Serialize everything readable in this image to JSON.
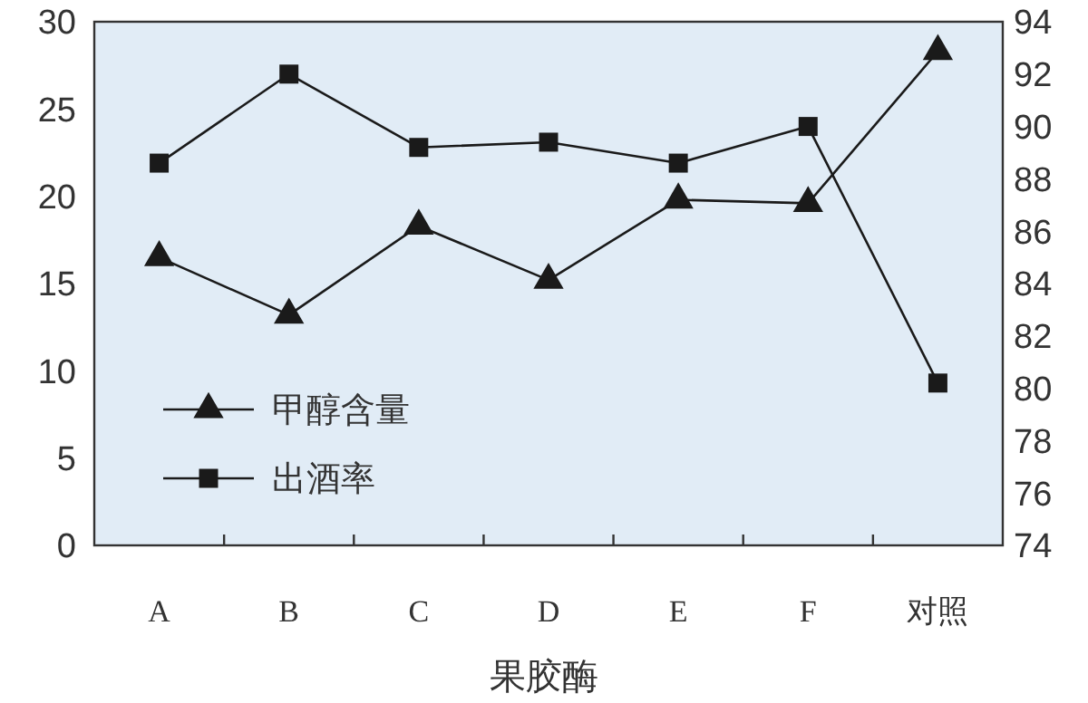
{
  "chart_data": {
    "type": "line",
    "xlabel": "果胶酶",
    "categories": [
      "A",
      "B",
      "C",
      "D",
      "E",
      "F",
      "对照"
    ],
    "series": [
      {
        "name": "甲醇含量",
        "color": "#1a1a1a",
        "marker": "triangle",
        "values": [
          16.5,
          13.2,
          18.3,
          15.2,
          19.8,
          19.6,
          28.3
        ]
      },
      {
        "name": "出酒率",
        "color": "#1a1a1a",
        "marker": "square",
        "axis": "y2",
        "values": [
          88.6,
          92.0,
          89.2,
          89.4,
          88.6,
          90.0,
          80.2
        ]
      }
    ],
    "ylim": [
      0,
      30
    ],
    "yticks": [
      0,
      5,
      10,
      15,
      20,
      25,
      30
    ],
    "y2lim": [
      74,
      94
    ],
    "y2ticks": [
      74,
      76,
      78,
      80,
      82,
      84,
      86,
      88,
      90,
      92,
      94
    ],
    "legend": "bottom left",
    "grid": false
  }
}
